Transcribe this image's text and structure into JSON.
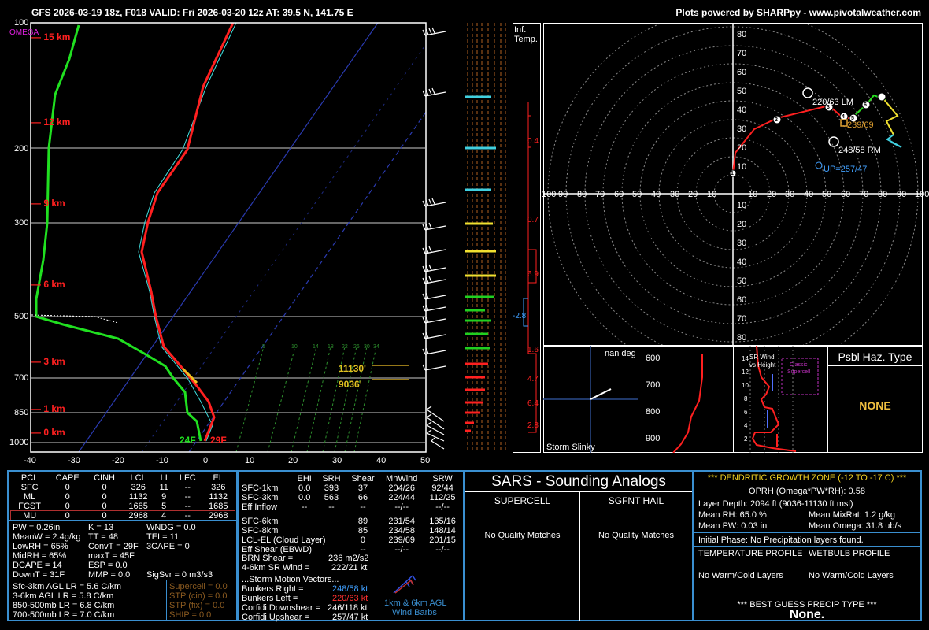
{
  "header": {
    "title": "GFS 2026-03-19 18z, F018  VALID: Fri 2026-03-20 12z  AT: 39.5 N, 141.75 E",
    "credit": "Plots powered by SHARPpy - www.pivotalweather.com"
  },
  "skewt": {
    "omega_label": "OMEGA",
    "pressure_ticks": [
      "100",
      "200",
      "300",
      "500",
      "700",
      "850",
      "1000"
    ],
    "height_labels": [
      "15 km",
      "12 km",
      "9 km",
      "6 km",
      "3 km",
      "1 km",
      "0 km"
    ],
    "temp_ticks": [
      "-40",
      "-30",
      "-20",
      "-10",
      "0",
      "10",
      "20",
      "30",
      "40",
      "50"
    ],
    "mixing_ratio_labels": [
      "5",
      "10",
      "14",
      "18",
      "22",
      "26",
      "30",
      "34"
    ],
    "sfc_td": "24F",
    "sfc_t": "29F",
    "dgz_top": "11130'",
    "dgz_bottom": "9036'",
    "colors": {
      "temp": "#ff2020",
      "dewpoint": "#20e020",
      "virtual": "#40e0e0",
      "parcel": "#ffffff"
    }
  },
  "inferred": {
    "label1": "Inf.",
    "label2": "Temp.",
    "values": [
      "0.4",
      "0.7",
      "6.9",
      "-2.8",
      "1.6",
      "4.7",
      "6.4",
      "2.8"
    ]
  },
  "hodograph": {
    "ring_labels_y_up": [
      "80",
      "70",
      "60",
      "50",
      "40",
      "30",
      "20",
      "10"
    ],
    "ring_labels_y_down": [
      "10",
      "20",
      "30",
      "40",
      "50",
      "60",
      "70",
      "80"
    ],
    "ring_labels_x": [
      "100",
      "90",
      "80",
      "70",
      "60",
      "50",
      "40",
      "30",
      "20",
      "10",
      "10",
      "20",
      "30",
      "40",
      "50",
      "60",
      "70",
      "80",
      "90",
      "100"
    ],
    "lm_label": "220/63 LM",
    "rm_label": "248/58 RM",
    "up_label": "UP=257/47",
    "mean_label": "239/69",
    "markers": [
      "1",
      "2",
      "3",
      "4",
      "5",
      "6"
    ]
  },
  "storm_slinky": {
    "title": "nan deg",
    "caption": "Storm Slinky",
    "levels": [
      "600",
      "700",
      "800",
      "900"
    ]
  },
  "srwind": {
    "title1": "SR Wind",
    "title2": "vs Height",
    "classic1": "Classic",
    "classic2": "Supercell",
    "ticks": [
      "14",
      "12",
      "10",
      "8",
      "6",
      "4",
      "2"
    ]
  },
  "hazard": {
    "title": "Psbl Haz. Type",
    "value": "NONE"
  },
  "thermo": {
    "headers": [
      "PCL",
      "CAPE",
      "CINH",
      "LCL",
      "LI",
      "LFC",
      "EL"
    ],
    "rows": [
      [
        "SFC",
        "0",
        "0",
        "326",
        "11",
        "--",
        "326"
      ],
      [
        "ML",
        "0",
        "0",
        "1132",
        "9",
        "--",
        "1132"
      ],
      [
        "FCST",
        "0",
        "0",
        "1685",
        "5",
        "--",
        "1685"
      ],
      [
        "MU",
        "0",
        "0",
        "2968",
        "4",
        "--",
        "2968"
      ]
    ],
    "col1": [
      "PW = 0.26in",
      "MeanW = 2.4g/kg",
      "LowRH = 65%",
      "MidRH = 65%",
      "DCAPE = 14",
      "DownT = 31F"
    ],
    "col2": [
      "K = 13",
      "TT = 48",
      "ConvT = 29F",
      "maxT = 45F",
      "ESP = 0.0",
      "MMP = 0.0"
    ],
    "col3": [
      "WNDG = 0.0",
      "TEI = 11",
      "3CAPE = 0",
      "",
      "",
      "SigSvr = 0 m3/s3"
    ],
    "lapse": [
      "Sfc-3km AGL LR = 5.6 C/km",
      "3-6km AGL LR = 5.8 C/km",
      "850-500mb LR = 6.8 C/km",
      "700-500mb LR = 7.0 C/km"
    ],
    "composite": [
      "Supercell = 0.0",
      "STP (cin) = 0.0",
      "STP (fix) = 0.0",
      "SHIP = 0.0"
    ]
  },
  "kinematic": {
    "headers": [
      "",
      "EHI",
      "SRH",
      "Shear",
      "MnWind",
      "SRW"
    ],
    "rows1": [
      [
        "SFC-1km",
        "0.0",
        "393",
        "37",
        "204/26",
        "92/44"
      ],
      [
        "SFC-3km",
        "0.0",
        "563",
        "66",
        "224/44",
        "112/25"
      ],
      [
        "Eff Inflow",
        "--",
        "--",
        "--",
        "--/--",
        "--/--"
      ]
    ],
    "rows2": [
      [
        "SFC-6km",
        "",
        "",
        "89",
        "231/54",
        "135/16"
      ],
      [
        "SFC-8km",
        "",
        "",
        "85",
        "234/58",
        "148/14"
      ],
      [
        "LCL-EL (Cloud Layer)",
        "",
        "",
        "0",
        "239/69",
        "201/15"
      ],
      [
        "Eff Shear (EBWD)",
        "",
        "",
        "--",
        "--/--",
        "--/--"
      ]
    ],
    "brn_label": "BRN Shear =",
    "brn_value": "236 m2/s2",
    "srwind_label": "4-6km SR Wind =",
    "srwind_value": "222/21 kt",
    "motion_title": "...Storm Motion Vectors...",
    "motions": [
      {
        "label": "Bunkers Right =",
        "value": "248/58 kt"
      },
      {
        "label": "Bunkers Left =",
        "value": "220/63 kt"
      },
      {
        "label": "Corfidi Downshear =",
        "value": "246/118 kt"
      },
      {
        "label": "Corfidi Upshear =",
        "value": "257/47 kt"
      }
    ],
    "barb_caption1": "1km & 6km AGL",
    "barb_caption2": "Wind Barbs"
  },
  "sars": {
    "title": "SARS - Sounding Analogs",
    "supercell_title": "SUPERCELL",
    "hail_title": "SGFNT HAIL",
    "supercell_value": "No Quality Matches",
    "hail_value": "No Quality Matches"
  },
  "dgz": {
    "title": "*** DENDRITIC GROWTH ZONE (-12 TO -17 C) ***",
    "oprh": "OPRH (Omega*PW*RH): 0.58",
    "depth": "Layer Depth: 2094 ft (9036-11130 ft msl)",
    "mean_rh": "Mean RH: 65.0 %",
    "mean_mixrat": "Mean MixRat: 1.2 g/kg",
    "mean_pw": "Mean PW: 0.03 in",
    "mean_omega": "Mean Omega: 31.8 ub/s",
    "initial_phase": "Initial Phase:  No Precipitation layers found.",
    "temp_profile_title": "TEMPERATURE PROFILE",
    "wetbulb_profile_title": "WETBULB PROFILE",
    "temp_profile_value": "No Warm/Cold Layers",
    "wetbulb_profile_value": "No Warm/Cold Layers",
    "precip_title": "*** BEST GUESS PRECIP TYPE ***",
    "precip_value": "None."
  }
}
